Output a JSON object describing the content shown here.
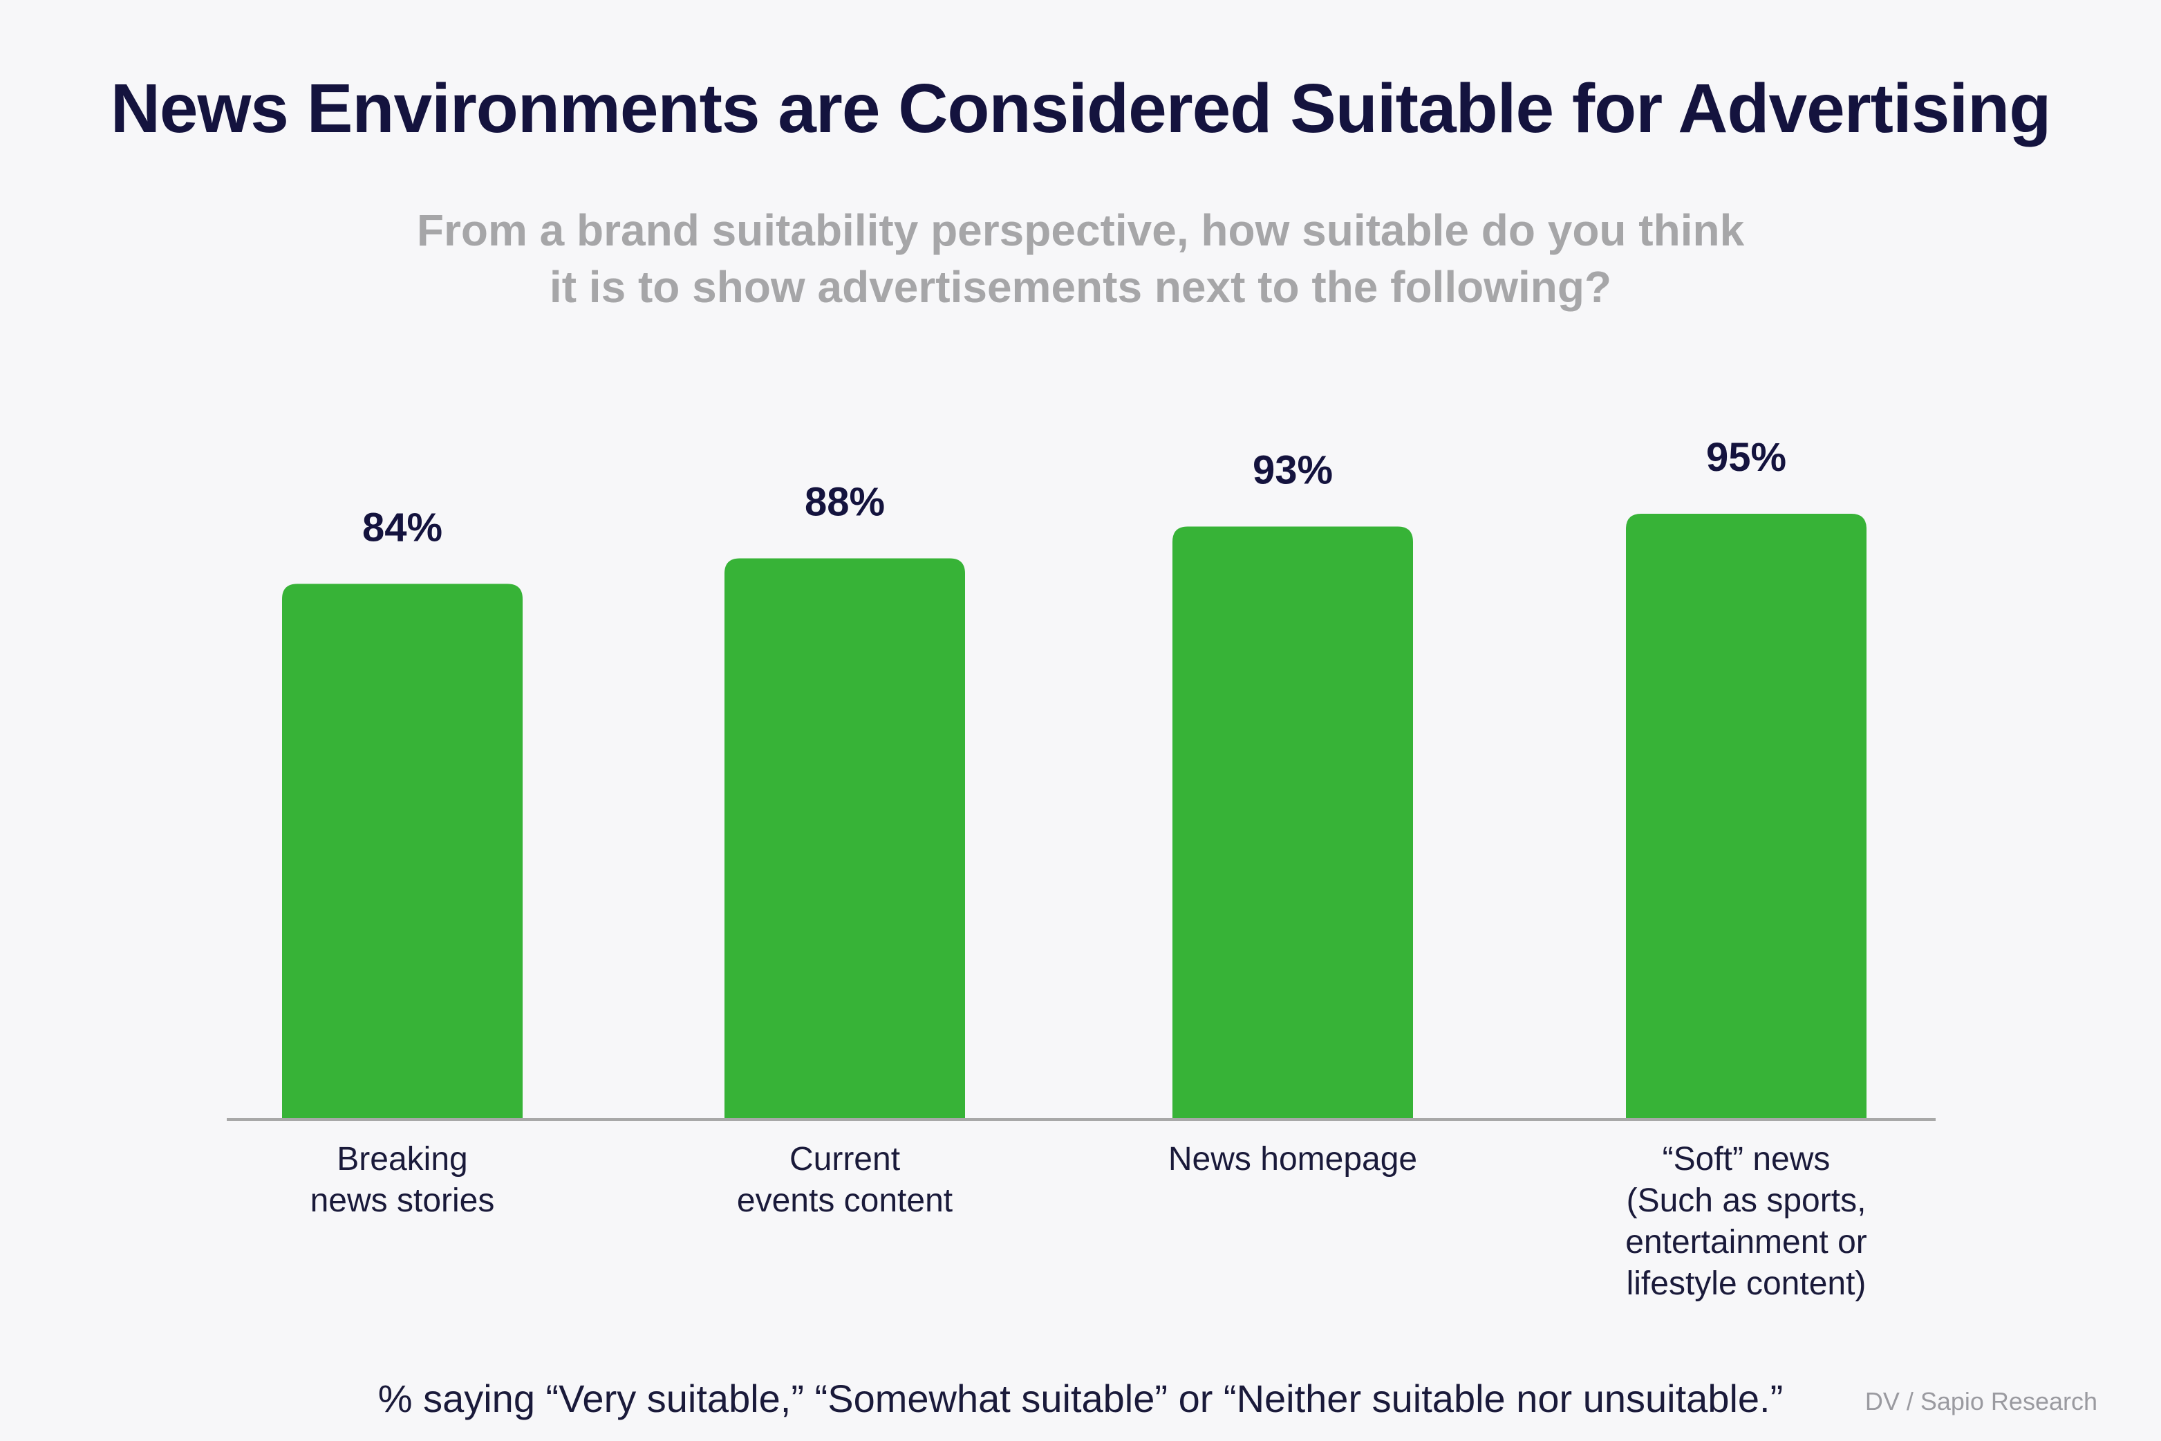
{
  "title": "News Environments are Considered Suitable for Advertising",
  "subtitle": {
    "line1": "From a brand suitability perspective, how suitable do you think",
    "line2": "it is to show advertisements next to the following?"
  },
  "chart_data": {
    "type": "bar",
    "title": "News Environments are Considered Suitable for Advertising",
    "xlabel": "",
    "ylabel": "",
    "ylim": [
      0,
      100
    ],
    "grid": false,
    "categories": [
      [
        "Breaking",
        "news stories"
      ],
      [
        "Current",
        "events content"
      ],
      [
        "News homepage"
      ],
      [
        "“Soft” news",
        "(Such as sports,",
        "entertainment or",
        "lifestyle content)"
      ]
    ],
    "values": [
      84,
      88,
      93,
      95
    ],
    "value_labels": [
      "84%",
      "88%",
      "93%",
      "95%"
    ],
    "bar_color": "#37b337"
  },
  "footnote": "% saying “Very suitable,” “Somewhat suitable” or “Neither suitable nor unsuitable.”",
  "source": "DV / Sapio Research",
  "colors": {
    "title": "#14133e",
    "subtitle": "#a6a6a8",
    "axis": "#a8a8a8",
    "background": "#f7f7f9"
  }
}
